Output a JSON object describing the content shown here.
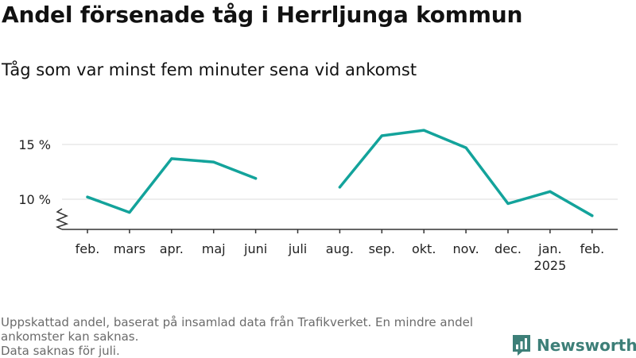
{
  "title": "Andel försenade tåg i Herrljunga kommun",
  "subtitle": "Tåg som var minst fem minuter sena vid ankomst",
  "footer": {
    "note_line1": "Uppskattad andel, baserat på insamlad data från Trafikverket. En mindre andel",
    "note_line2": "ankomster kan saknas.",
    "note_line3": "Data saknas för juli."
  },
  "brand": {
    "name": "Newsworthy",
    "icon": "bar-chart-speech-bubble-icon",
    "color": "#3d7f78"
  },
  "colors": {
    "line": "#13a39b",
    "grid": "#dddddd",
    "axis": "#333333"
  },
  "chart_data": {
    "type": "line",
    "categories": [
      "feb.",
      "mars",
      "apr.",
      "maj",
      "juni",
      "juli",
      "aug.",
      "sep.",
      "okt.",
      "nov.",
      "dec.",
      "jan.",
      "feb."
    ],
    "category_sublabels": [
      "",
      "",
      "",
      "",
      "",
      "",
      "",
      "",
      "",
      "",
      "",
      "2025",
      ""
    ],
    "series": [
      {
        "values": [
          10.2,
          8.8,
          13.7,
          13.4,
          11.9,
          null,
          11.1,
          15.8,
          16.3,
          14.7,
          9.6,
          10.7,
          8.5
        ]
      }
    ],
    "yticks": [
      10,
      15
    ],
    "ytick_labels": [
      "10 %",
      "15 %"
    ],
    "ylim": [
      7.5,
      17
    ],
    "y_axis_broken": true,
    "grid": true,
    "xlabel": "",
    "ylabel": ""
  }
}
